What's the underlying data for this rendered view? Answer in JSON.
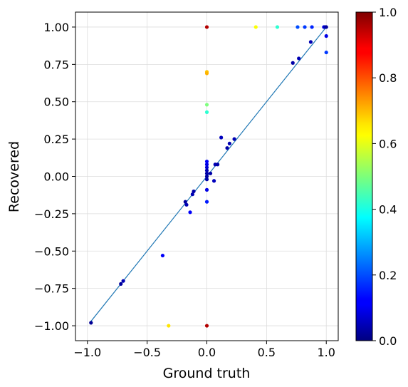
{
  "chart_data": {
    "type": "scatter",
    "title": "",
    "xlabel": "Ground truth",
    "ylabel": "Recovered",
    "xlim": [
      -1.1,
      1.1
    ],
    "ylim": [
      -1.1,
      1.1
    ],
    "xticks": [
      -1.0,
      -0.5,
      0.0,
      0.5,
      1.0
    ],
    "xtick_labels": [
      "−1.0",
      "−0.5",
      "0.0",
      "0.5",
      "1.0"
    ],
    "yticks": [
      -1.0,
      -0.75,
      -0.5,
      -0.25,
      0.0,
      0.25,
      0.5,
      0.75,
      1.0
    ],
    "ytick_labels": [
      "−1.00",
      "−0.75",
      "−0.50",
      "−0.25",
      "0.00",
      "0.25",
      "0.50",
      "0.75",
      "1.00"
    ],
    "grid": true,
    "identity_line": {
      "from": [
        -0.98,
        -0.98
      ],
      "to": [
        1.0,
        1.0
      ],
      "color": "#1f77b4"
    },
    "colormap": "jet",
    "colorbar": {
      "range": [
        0.0,
        1.0
      ],
      "ticks": [
        0.0,
        0.2,
        0.4,
        0.6,
        0.8,
        1.0
      ],
      "tick_labels": [
        "0.0",
        "0.2",
        "0.4",
        "0.6",
        "0.8",
        "1.0"
      ]
    },
    "points": [
      {
        "x": -0.97,
        "y": -0.98,
        "c": 0.02
      },
      {
        "x": -0.72,
        "y": -0.72,
        "c": 0.03
      },
      {
        "x": -0.7,
        "y": -0.7,
        "c": 0.05
      },
      {
        "x": -0.37,
        "y": -0.53,
        "c": 0.12
      },
      {
        "x": -0.32,
        "y": -1.0,
        "c": 0.65
      },
      {
        "x": -0.18,
        "y": -0.17,
        "c": 0.03
      },
      {
        "x": -0.17,
        "y": -0.19,
        "c": 0.05
      },
      {
        "x": -0.14,
        "y": -0.24,
        "c": 0.12
      },
      {
        "x": -0.12,
        "y": -0.12,
        "c": 0.05
      },
      {
        "x": -0.11,
        "y": -0.1,
        "c": 0.04
      },
      {
        "x": 0.0,
        "y": 1.0,
        "c": 0.95
      },
      {
        "x": 0.0,
        "y": 0.7,
        "c": 0.68
      },
      {
        "x": 0.0,
        "y": 0.69,
        "c": 0.7
      },
      {
        "x": 0.0,
        "y": 0.48,
        "c": 0.5
      },
      {
        "x": 0.0,
        "y": 0.43,
        "c": 0.42
      },
      {
        "x": 0.0,
        "y": 0.1,
        "c": 0.12
      },
      {
        "x": 0.0,
        "y": 0.08,
        "c": 0.1
      },
      {
        "x": 0.0,
        "y": 0.06,
        "c": 0.08
      },
      {
        "x": 0.0,
        "y": 0.04,
        "c": 0.05
      },
      {
        "x": 0.0,
        "y": 0.02,
        "c": 0.04
      },
      {
        "x": 0.0,
        "y": 0.0,
        "c": 0.03
      },
      {
        "x": 0.0,
        "y": -0.02,
        "c": 0.04
      },
      {
        "x": 0.0,
        "y": -0.09,
        "c": 0.1
      },
      {
        "x": 0.0,
        "y": -0.17,
        "c": 0.15
      },
      {
        "x": 0.0,
        "y": -1.0,
        "c": 0.95
      },
      {
        "x": 0.03,
        "y": 0.02,
        "c": 0.04
      },
      {
        "x": 0.06,
        "y": -0.03,
        "c": 0.06
      },
      {
        "x": 0.07,
        "y": 0.08,
        "c": 0.05
      },
      {
        "x": 0.09,
        "y": 0.08,
        "c": 0.04
      },
      {
        "x": 0.12,
        "y": 0.26,
        "c": 0.06
      },
      {
        "x": 0.17,
        "y": 0.19,
        "c": 0.04
      },
      {
        "x": 0.19,
        "y": 0.22,
        "c": 0.05
      },
      {
        "x": 0.23,
        "y": 0.25,
        "c": 0.05
      },
      {
        "x": 0.41,
        "y": 1.0,
        "c": 0.62
      },
      {
        "x": 0.59,
        "y": 1.0,
        "c": 0.42
      },
      {
        "x": 0.72,
        "y": 0.76,
        "c": 0.04
      },
      {
        "x": 0.77,
        "y": 0.79,
        "c": 0.05
      },
      {
        "x": 0.76,
        "y": 1.0,
        "c": 0.2
      },
      {
        "x": 0.82,
        "y": 1.0,
        "c": 0.18
      },
      {
        "x": 0.87,
        "y": 0.9,
        "c": 0.05
      },
      {
        "x": 0.88,
        "y": 1.0,
        "c": 0.16
      },
      {
        "x": 0.98,
        "y": 1.0,
        "c": 0.1
      },
      {
        "x": 0.99,
        "y": 1.0,
        "c": 0.06
      },
      {
        "x": 1.0,
        "y": 1.0,
        "c": 0.03
      },
      {
        "x": 1.0,
        "y": 0.94,
        "c": 0.1
      },
      {
        "x": 1.0,
        "y": 0.83,
        "c": 0.18
      }
    ]
  }
}
